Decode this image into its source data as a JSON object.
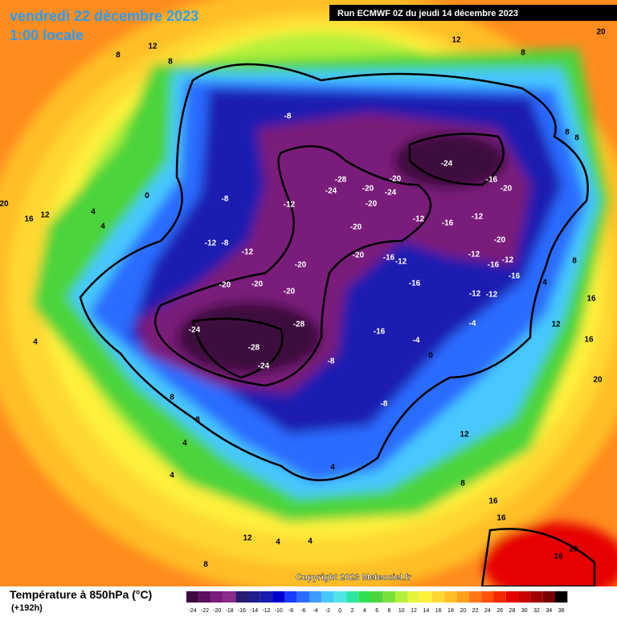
{
  "header": {
    "title": "vendredi 22 décembre 2023",
    "subtitle": "1:00 locale",
    "run": "Run ECMWF 0Z du jeudi 14 décembre 2023"
  },
  "map": {
    "copyright": "Copyright 2023 Meteociel.fr",
    "contour_labels": [
      -8,
      -24,
      -28,
      -24,
      -20,
      -24,
      -20,
      -16,
      -20,
      -8,
      -12,
      -20,
      -12,
      -16,
      -12,
      -20,
      -20,
      -12,
      -8,
      -12,
      -20,
      -16,
      -12,
      -12,
      -12,
      -16,
      -20,
      -16,
      -20,
      -20,
      -16,
      -20,
      -12,
      -12,
      -24,
      -28,
      -16,
      -4,
      -28,
      0,
      -8,
      -24,
      -8,
      -4,
      8,
      12,
      8,
      12,
      8,
      20,
      8,
      8,
      0,
      20,
      16,
      12,
      4,
      4,
      8,
      4,
      16,
      12,
      16,
      4,
      20,
      8,
      8,
      4,
      12,
      4,
      8,
      16,
      16,
      12,
      4,
      4,
      8,
      20,
      16,
      4
    ]
  },
  "footer": {
    "title": "Température à 850hPa (°C)",
    "lead": "(+192h)",
    "legend": {
      "ticks": [
        -24,
        -22,
        -20,
        -18,
        -16,
        -14,
        -12,
        -10,
        -8,
        -6,
        -4,
        -2,
        0,
        2,
        4,
        6,
        8,
        10,
        12,
        14,
        16,
        18,
        20,
        22,
        24,
        26,
        28,
        30,
        32,
        34,
        36
      ],
      "colors": [
        "#3d0a3d",
        "#5c0f5c",
        "#7a1a7a",
        "#8c2a8c",
        "#2a1a6e",
        "#1e1e8c",
        "#1a1ab0",
        "#0000d0",
        "#1a3cff",
        "#2b6cff",
        "#3c9cff",
        "#46c8ff",
        "#50e6e6",
        "#2ee6a0",
        "#30e050",
        "#4cd43a",
        "#7ae03a",
        "#b4f03a",
        "#e6f53a",
        "#fff03a",
        "#ffd732",
        "#ffbe28",
        "#ffa01e",
        "#ff7814",
        "#ff500a",
        "#f52800",
        "#e60000",
        "#c80000",
        "#a00000",
        "#780000",
        "#000000"
      ]
    }
  }
}
